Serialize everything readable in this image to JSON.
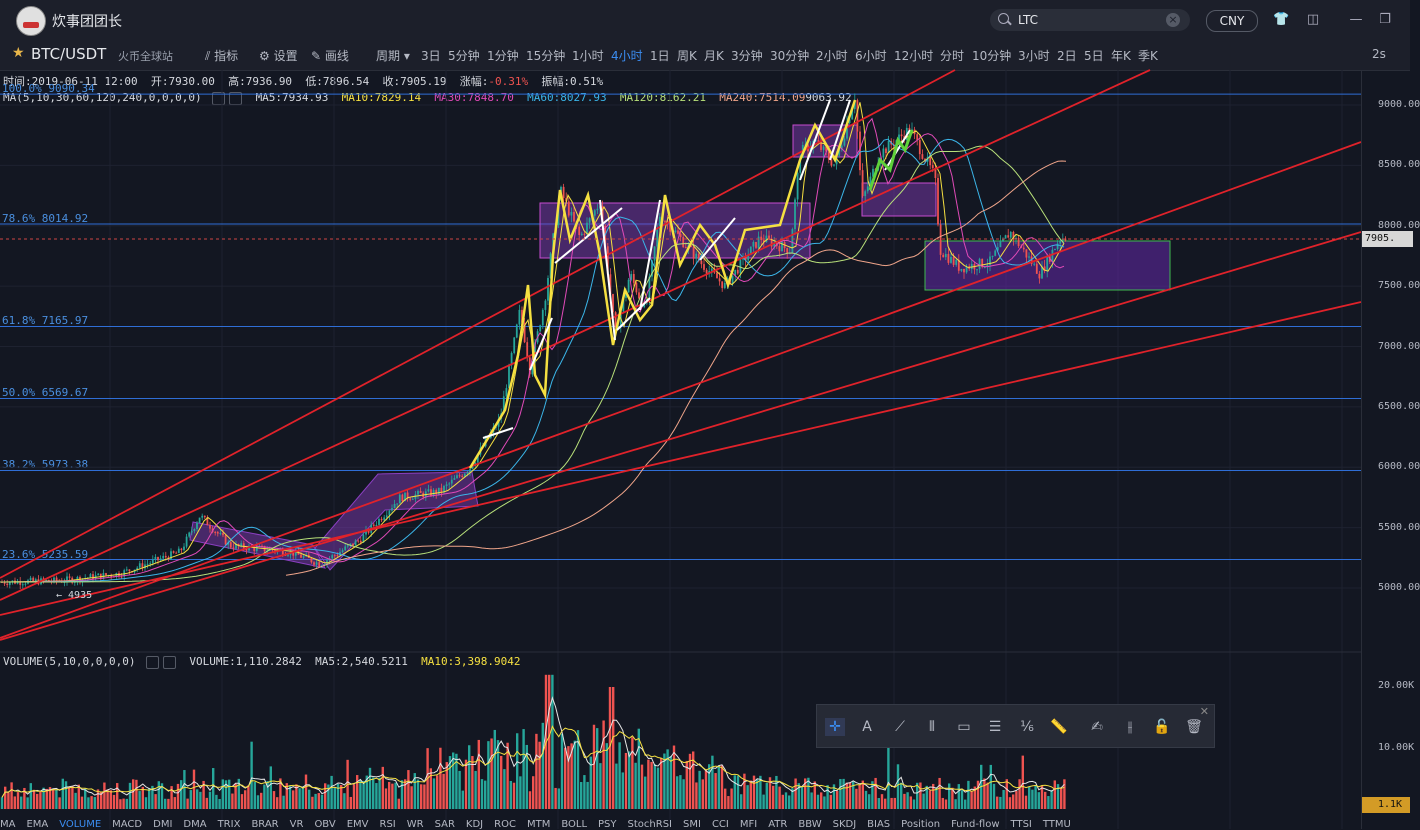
{
  "app": {
    "username": "炊事团团长"
  },
  "search": {
    "value": "LTC",
    "clear": "×"
  },
  "currency": "CNY",
  "toolbar": {
    "symbol": "BTC/USDT",
    "exchange": "火币全球站",
    "indicators": "指标",
    "settings": "设置",
    "draw": "画线",
    "period_label": "周期",
    "periods": [
      "3日",
      "5分钟",
      "1分钟",
      "15分钟",
      "1小时",
      "4小时",
      "1日",
      "周K",
      "月K",
      "3分钟",
      "30分钟",
      "2小时",
      "6小时",
      "12小时",
      "分时",
      "10分钟",
      "3小时",
      "2日",
      "5日",
      "年K",
      "季K"
    ],
    "active_period": "4小时",
    "right": "2s"
  },
  "ohlc": {
    "time": "时间:2019-06-11 12:00",
    "open": "开:7930.00",
    "high": "高:7936.90",
    "low": "低:7896.54",
    "close": "收:7905.19",
    "change": "涨幅:-0.31%",
    "amplitude": "振幅:0.51%"
  },
  "ma": {
    "label": "MA(5,10,30,60,120,240,0,0,0,0)",
    "ma5": "MA5:7934.93",
    "ma10": "MA10:7829.14",
    "ma30": "MA30:7848.70",
    "ma60": "MA60:8027.93",
    "ma120": "MA120:8162.21",
    "ma240": "MA240:7514.09",
    "ma240_high": "9063.92"
  },
  "volume": {
    "label": "VOLUME(5,10,0,0,0,0)",
    "vol": "VOLUME:1,110.2842",
    "ma5": "MA5:2,540.5211",
    "ma10": "MA10:3,398.9042"
  },
  "fib_levels": [
    {
      "label": "100.0% 9090.34",
      "price": 9090.34
    },
    {
      "label": "78.6% 8014.92",
      "price": 8014.92
    },
    {
      "label": "61.8% 7165.97",
      "price": 7165.97
    },
    {
      "label": "50.0% 6569.67",
      "price": 6569.67
    },
    {
      "label": "38.2% 5973.38",
      "price": 5973.38
    },
    {
      "label": "23.6% 5235.59",
      "price": 5235.59
    }
  ],
  "price_axis": [
    "9000.00",
    "8500.00",
    "8000.00",
    "7500.00",
    "7000.00",
    "6500.00",
    "6000.00",
    "5500.00",
    "5000.00"
  ],
  "volume_axis": [
    "20.00K",
    "10.00K"
  ],
  "last_price": "7905.",
  "last_volume": "1.1K",
  "low_label": "← 4935",
  "indicator_tabs": [
    "MA",
    "EMA",
    "VOLUME",
    "MACD",
    "DMI",
    "DMA",
    "TRIX",
    "BRAR",
    "VR",
    "OBV",
    "EMV",
    "RSI",
    "WR",
    "SAR",
    "KDJ",
    "ROC",
    "MTM",
    "BOLL",
    "PSY",
    "StochRSI",
    "SMI",
    "CCI",
    "MFI",
    "ATR",
    "BBW",
    "SKDJ",
    "BIAS",
    "Position",
    "Fund-flow",
    "TTSI",
    "TTMU"
  ],
  "active_indicator": "VOLUME",
  "colors": {
    "accent": "#3b8df2",
    "up": "#26a69a",
    "down": "#ef5350",
    "fib": "#2f6ed6",
    "trend": "#e0222a",
    "box": "#8a3fc1"
  }
}
